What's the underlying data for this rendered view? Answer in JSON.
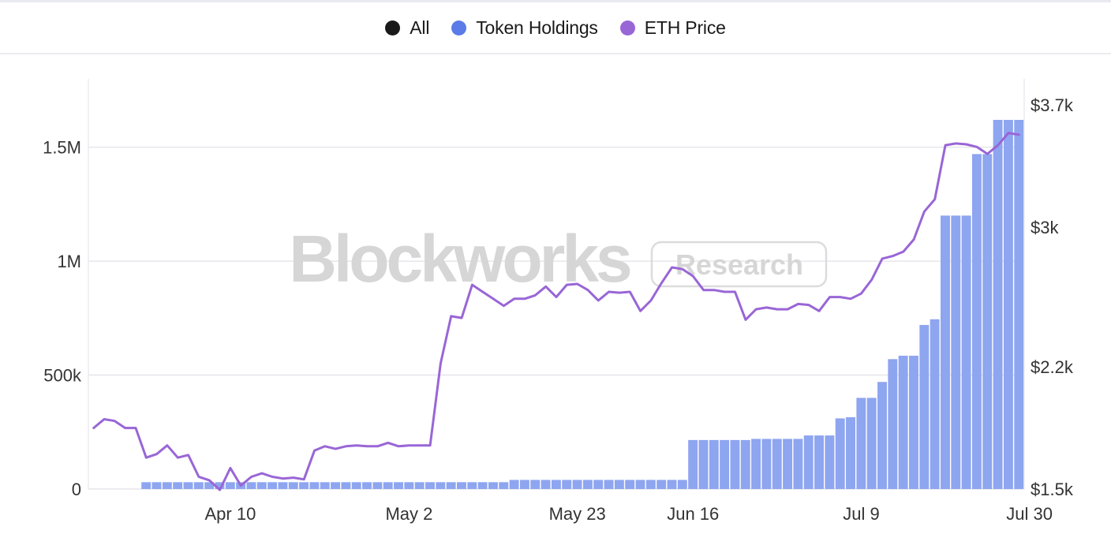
{
  "legend": {
    "items": [
      {
        "label": "All",
        "color": "#1a1a1a"
      },
      {
        "label": "Token Holdings",
        "color": "#5b7be8"
      },
      {
        "label": "ETH Price",
        "color": "#9966d6"
      }
    ]
  },
  "watermark": {
    "brand": "Blockworks",
    "badge": "Research"
  },
  "chart_data": {
    "type": "bar+line",
    "title": "",
    "legend_position": "top-center",
    "x_tick_labels": [
      "Apr 10",
      "May 2",
      "May 23",
      "Jun 16",
      "Jul 9",
      "Jul 30"
    ],
    "x_tick_positions": [
      13,
      30,
      46,
      57,
      73,
      89
    ],
    "left_axis": {
      "ylim": [
        0,
        1800000
      ],
      "ticks": [
        0,
        500000,
        1000000,
        1500000
      ],
      "tick_labels": [
        "0",
        "500k",
        "1M",
        "1.5M"
      ]
    },
    "right_axis": {
      "ylim": [
        1500,
        3850
      ],
      "ticks": [
        1500,
        2200,
        3000,
        3700
      ],
      "tick_labels": [
        "$1.5k",
        "$2.2k",
        "$3k",
        "$3.7k"
      ]
    },
    "x_count": 89,
    "series": [
      {
        "name": "Token Holdings",
        "type": "bar",
        "axis": "left",
        "color": "#8ea5f0",
        "values": [
          0,
          0,
          0,
          0,
          0,
          30000,
          30000,
          30000,
          30000,
          30000,
          30000,
          30000,
          30000,
          30000,
          30000,
          30000,
          30000,
          30000,
          30000,
          30000,
          30000,
          30000,
          30000,
          30000,
          30000,
          30000,
          30000,
          30000,
          30000,
          30000,
          30000,
          30000,
          30000,
          30000,
          30000,
          30000,
          30000,
          30000,
          30000,
          30000,
          40000,
          40000,
          40000,
          40000,
          40000,
          40000,
          40000,
          40000,
          40000,
          40000,
          40000,
          40000,
          40000,
          40000,
          40000,
          40000,
          40000,
          215000,
          215000,
          215000,
          215000,
          215000,
          215000,
          220000,
          220000,
          220000,
          220000,
          220000,
          235000,
          235000,
          235000,
          310000,
          315000,
          400000,
          400000,
          470000,
          570000,
          585000,
          585000,
          720000,
          745000,
          1200000,
          1200000,
          1200000,
          1470000,
          1470000,
          1620000,
          1620000,
          1620000
        ]
      },
      {
        "name": "ETH Price",
        "type": "line",
        "axis": "right",
        "color": "#9966d6",
        "values": [
          1850,
          1900,
          1890,
          1850,
          1850,
          1680,
          1700,
          1750,
          1680,
          1695,
          1570,
          1550,
          1495,
          1620,
          1520,
          1570,
          1590,
          1570,
          1560,
          1565,
          1555,
          1720,
          1745,
          1730,
          1745,
          1750,
          1745,
          1745,
          1765,
          1745,
          1750,
          1750,
          1750,
          2220,
          2490,
          2480,
          2670,
          2630,
          2590,
          2550,
          2590,
          2590,
          2610,
          2660,
          2600,
          2670,
          2675,
          2640,
          2580,
          2630,
          2625,
          2630,
          2520,
          2580,
          2680,
          2770,
          2760,
          2720,
          2640,
          2640,
          2630,
          2630,
          2470,
          2530,
          2540,
          2530,
          2530,
          2560,
          2555,
          2520,
          2600,
          2600,
          2590,
          2620,
          2700,
          2820,
          2835,
          2860,
          2930,
          3090,
          3160,
          3470,
          3480,
          3475,
          3460,
          3420,
          3470,
          3540,
          3530
        ]
      }
    ]
  }
}
